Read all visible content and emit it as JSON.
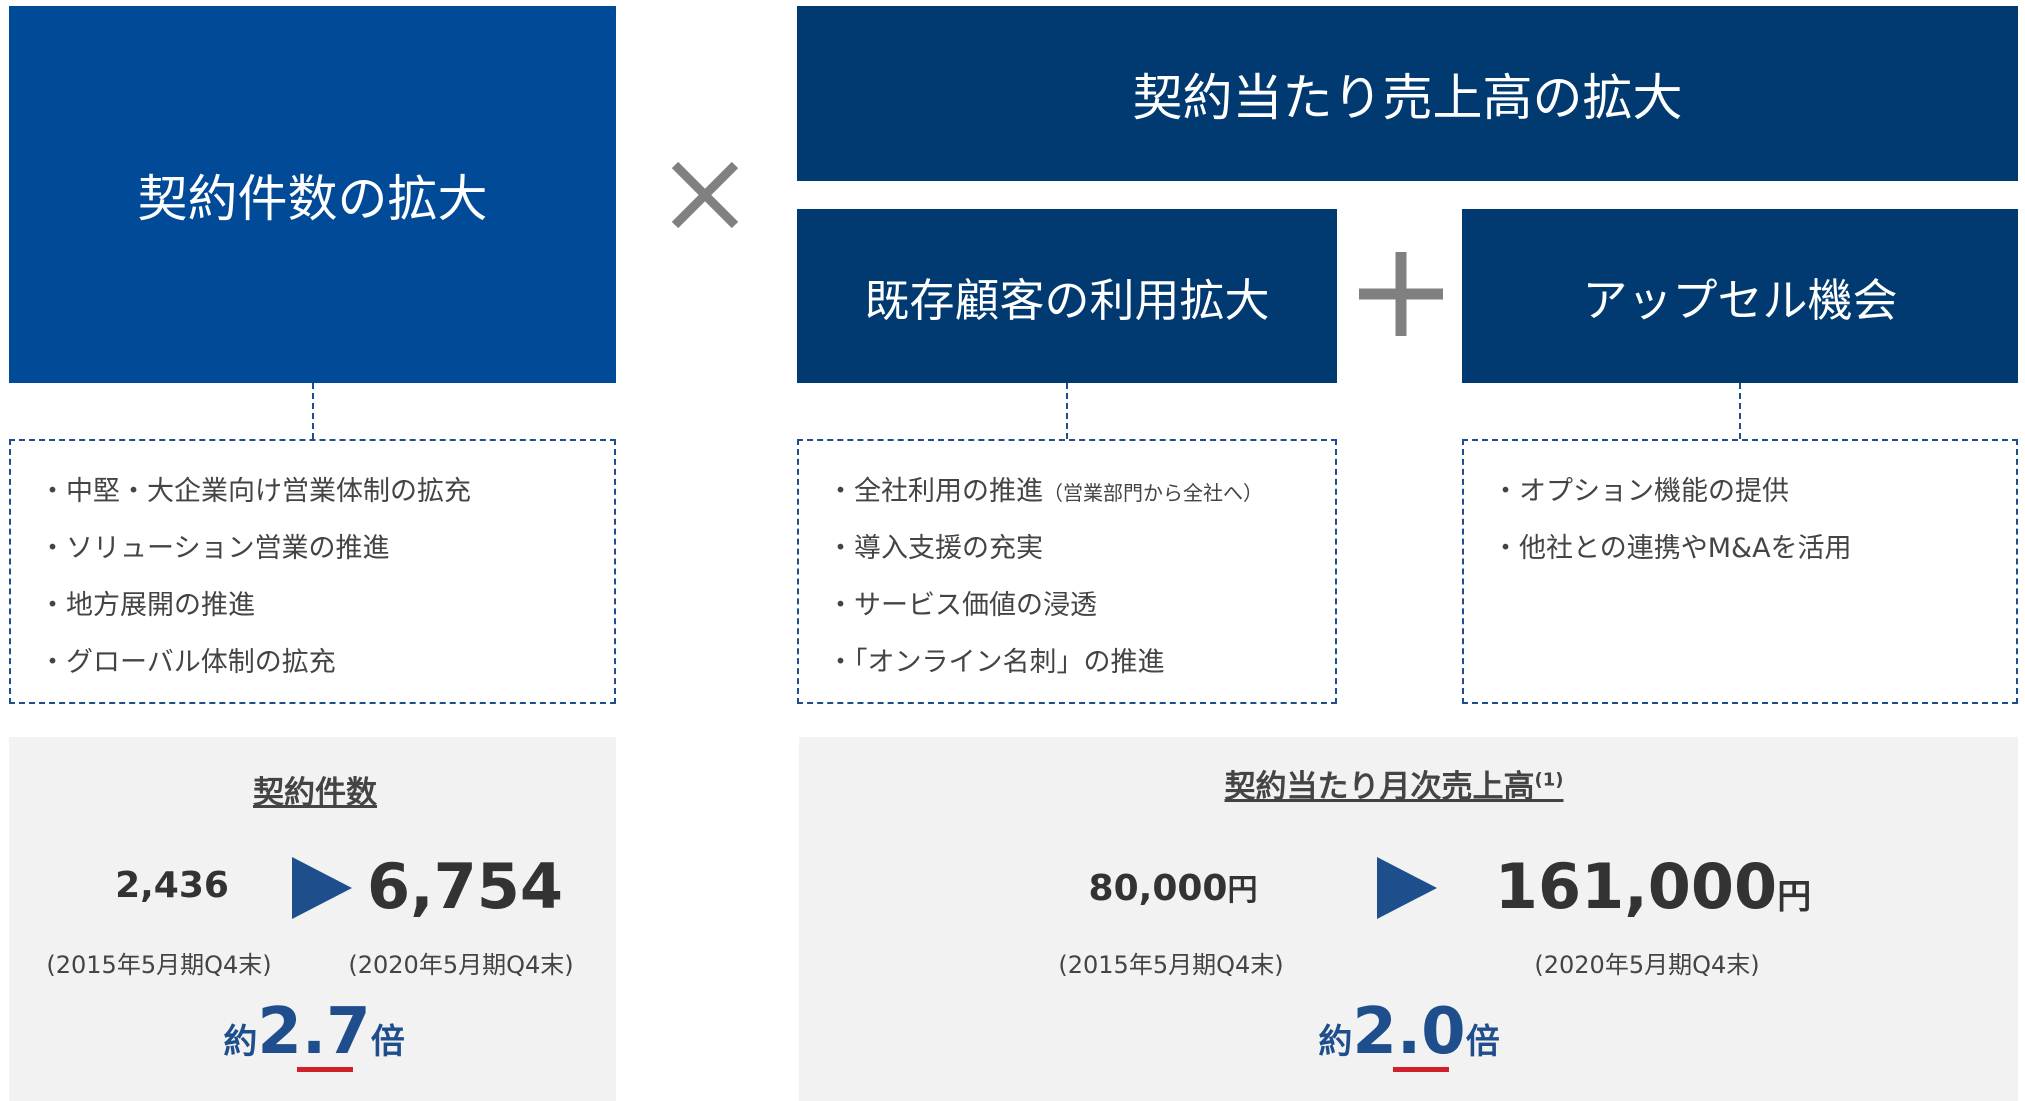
{
  "left": {
    "title": "契約件数の拡大",
    "bullets": [
      "中堅・大企業向け営業体制の拡充",
      "ソリューション営業の推進",
      "地方展開の推進",
      "グローバル体制の拡充"
    ],
    "stats": {
      "label": "契約件数",
      "before": "2,436",
      "before_period": "(2015年5月期Q4末)",
      "after": "6,754",
      "after_period": "(2020年5月期Q4末)",
      "prefix": "約",
      "multiplier": "2.7",
      "suffix": "倍"
    }
  },
  "right": {
    "title": "契約当たり売上高の拡大",
    "sub1": {
      "title": "既存顧客の利用拡大",
      "bullets": [
        "全社利用の推進",
        "導入支援の充実",
        "サービス価値の浸透",
        "「オンライン名刺」の推進"
      ],
      "note": "（営業部門から全社へ）"
    },
    "sub2": {
      "title": "アップセル機会",
      "bullets": [
        "オプション機能の提供",
        "他社との連携やM&Aを活用"
      ]
    },
    "stats": {
      "label": "契約当たり月次売上高",
      "footnote": "(1)",
      "before": "80,000",
      "unit": "円",
      "before_period": "(2015年5月期Q4末)",
      "after": "161,000",
      "after_period": "(2020年5月期Q4末)",
      "prefix": "約",
      "multiplier": "2.0",
      "suffix": "倍"
    }
  }
}
